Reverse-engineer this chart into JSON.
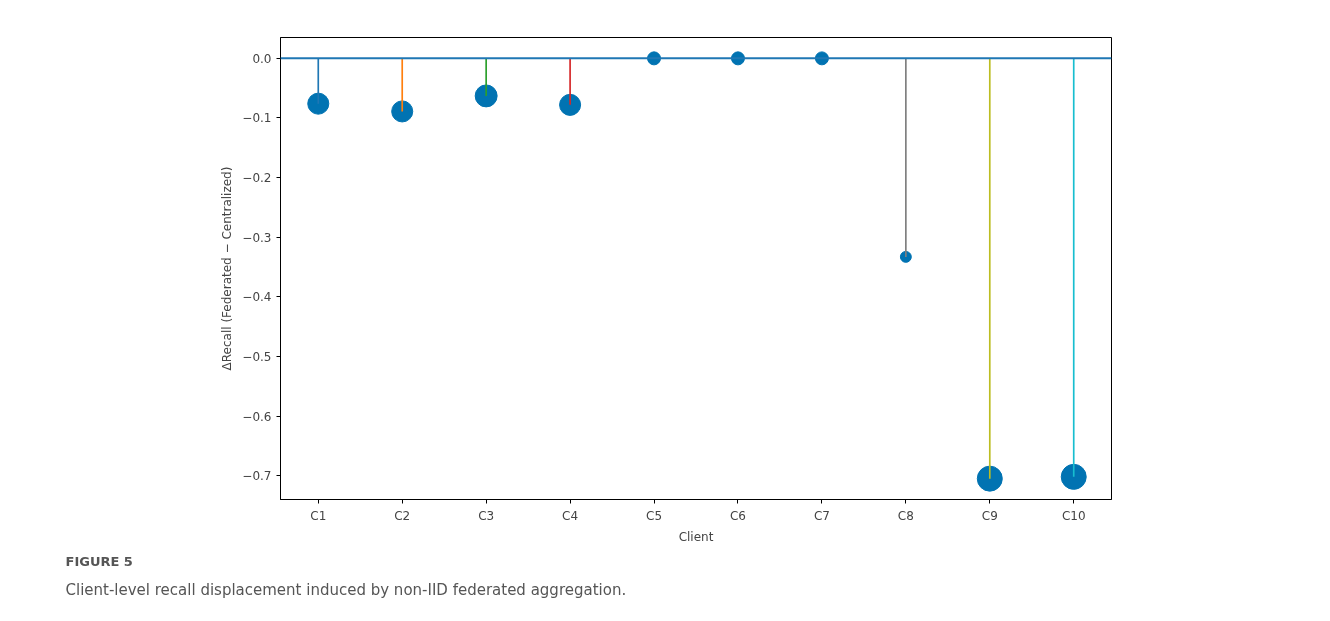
{
  "chart_data": {
    "type": "lollipop",
    "xlabel": "Client",
    "ylabel": "ΔRecall (Federated − Centralized)",
    "categories": [
      "C1",
      "C2",
      "C3",
      "C4",
      "C5",
      "C6",
      "C7",
      "C8",
      "C9",
      "C10"
    ],
    "series": [
      {
        "type": "bar",
        "colors": [
          "#1f77b4",
          "#ff7f0e",
          "#2ca02c",
          "#d62728",
          "#9467bd",
          "#8c564b",
          "#e377c2",
          "#7f7f7f",
          "#bcbd22",
          "#17becf"
        ],
        "values": [
          -0.076,
          -0.089,
          -0.063,
          -0.078,
          0,
          0,
          0,
          -0.333,
          -0.705,
          -0.702
        ]
      },
      {
        "type": "bubble",
        "color": "#0173b2",
        "values": [
          -0.076,
          -0.089,
          -0.063,
          -0.078,
          0,
          0,
          0,
          -0.333,
          -0.705,
          -0.702
        ],
        "sizes": [
          0.71,
          0.71,
          0.77,
          0.71,
          0.27,
          0.27,
          0.27,
          0.19,
          1,
          1
        ]
      }
    ],
    "ylim": [
      -0.74,
      0.035
    ],
    "yticks": [
      {
        "value": 0,
        "label": "0.0"
      },
      {
        "value": -0.1,
        "label": "−0.1"
      },
      {
        "value": -0.2,
        "label": "−0.2"
      },
      {
        "value": -0.3,
        "label": "−0.3"
      },
      {
        "value": -0.4,
        "label": "−0.4"
      },
      {
        "value": -0.5,
        "label": "−0.5"
      },
      {
        "value": -0.6,
        "label": "−0.6"
      },
      {
        "value": -0.7,
        "label": "−0.7"
      }
    ],
    "ref_lines": [
      {
        "axis": "y",
        "value": 0,
        "color": "#1f77b4"
      }
    ],
    "grid": false,
    "annotations": [
      "FIGURE 5",
      "Client-level recall displacement induced by non-IID federated aggregation."
    ]
  }
}
